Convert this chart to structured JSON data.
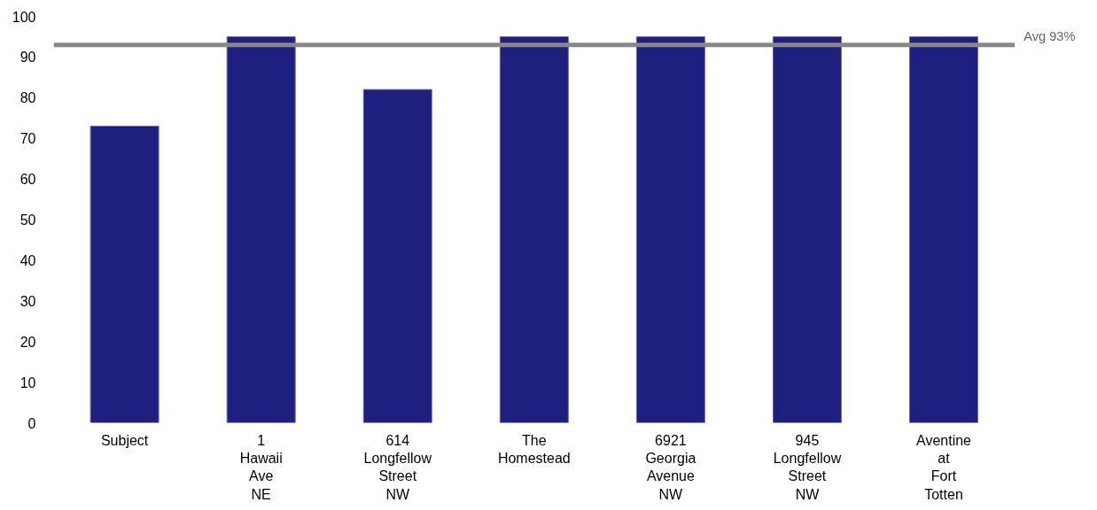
{
  "chart_data": {
    "type": "bar",
    "categories": [
      "Subject",
      "1\nHawaii\nAve\nNE",
      "614\nLongfellow\nStreet\nNW",
      "The\nHomestead",
      "6921\nGeorgia\nAvenue\nNW",
      "945\nLongfellow\nStreet\nNW",
      "Aventine\nat\nFort\nTotten"
    ],
    "values": [
      73,
      95,
      82,
      95,
      95,
      95,
      95
    ],
    "color": "#1f1f80",
    "ylim": [
      0,
      100
    ],
    "yticks": [
      0,
      10,
      20,
      30,
      40,
      50,
      60,
      70,
      80,
      90,
      100
    ],
    "grid": false,
    "ref_lines": [
      {
        "axis": "y",
        "value": 93,
        "label": "Avg 93%",
        "color": "#888888"
      }
    ]
  }
}
